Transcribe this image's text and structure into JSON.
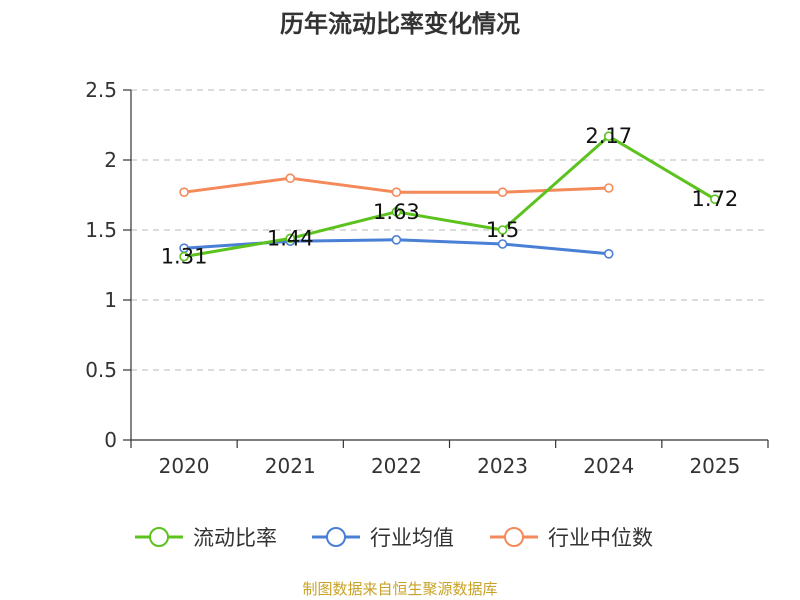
{
  "chart_data": {
    "type": "line",
    "title": "历年流动比率变化情况",
    "categories": [
      "2020",
      "2021",
      "2022",
      "2023",
      "2024",
      "2025"
    ],
    "ylim": [
      0,
      2.5
    ],
    "yticks": [
      "0",
      "0.5",
      "1",
      "1.5",
      "2",
      "2.5"
    ],
    "ytick_values": [
      0,
      0.5,
      1,
      1.5,
      2,
      2.5
    ],
    "grid": true,
    "legend_position": "bottom",
    "series": [
      {
        "name": "流动比率",
        "color": "#5cc21e",
        "values": [
          1.31,
          1.44,
          1.63,
          1.5,
          2.17,
          1.72
        ],
        "labels": [
          "1.31",
          "1.44",
          "1.63",
          "1.5",
          "2.17",
          "1.72"
        ],
        "show_labels": true
      },
      {
        "name": "行业均值",
        "color": "#4a7fd6",
        "values": [
          1.37,
          1.42,
          1.43,
          1.4,
          1.33,
          null
        ],
        "show_labels": false
      },
      {
        "name": "行业中位数",
        "color": "#f4895a",
        "values": [
          1.77,
          1.87,
          1.77,
          1.77,
          1.8,
          null
        ],
        "show_labels": false
      }
    ],
    "source": "制图数据来自恒生聚源数据库"
  }
}
